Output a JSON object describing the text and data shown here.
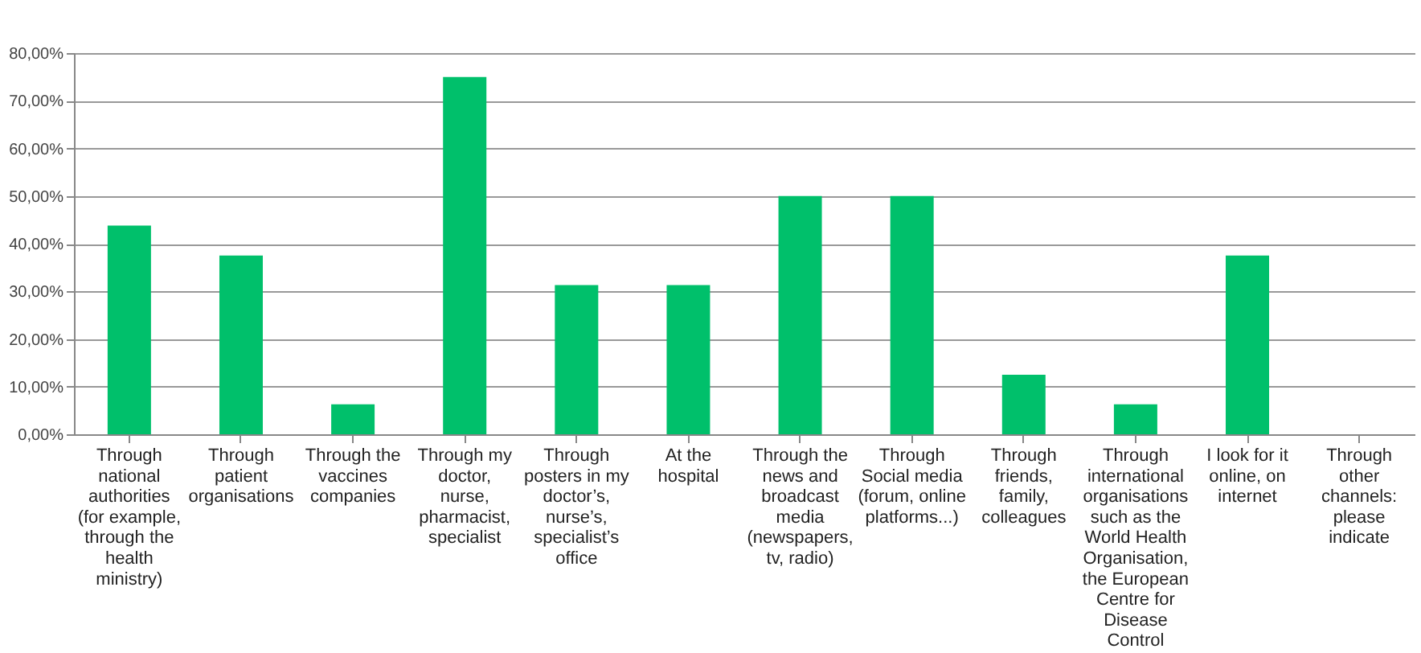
{
  "chart_data": {
    "type": "bar",
    "categories": [
      "Through\nnational\nauthorities\n(for example,\nthrough the\nhealth\nministry)",
      "Through\npatient\norganisations",
      "Through the\nvaccines\ncompanies",
      "Through my\ndoctor,\nnurse,\npharmacist,\nspecialist",
      "Through\nposters in my\ndoctor’s,\nnurse’s,\nspecialist’s\noffice",
      "At the\nhospital",
      "Through the\nnews and\nbroadcast\nmedia\n(newspapers,\ntv, radio)",
      "Through\nSocial media\n(forum, online\nplatforms...)",
      "Through\nfriends,\nfamily,\ncolleagues",
      "Through\ninternational\norganisations\nsuch as the\nWorld Health\nOrganisation,\nthe European\nCentre for\nDisease\nControl",
      "I look for it\nonline, on\ninternet",
      "Through\nother\nchannels:\nplease\nindicate"
    ],
    "values": [
      43.8,
      37.5,
      6.3,
      75,
      31.3,
      31.3,
      50,
      50,
      12.5,
      6.3,
      37.5,
      0
    ],
    "color": "#00c06b",
    "ylim": [
      0,
      80
    ],
    "yticks": [
      {
        "value": 0,
        "label": "0,00%"
      },
      {
        "value": 10,
        "label": "10,00%"
      },
      {
        "value": 20,
        "label": "20,00%"
      },
      {
        "value": 30,
        "label": "30,00%"
      },
      {
        "value": 40,
        "label": "40,00%"
      },
      {
        "value": 50,
        "label": "50,00%"
      },
      {
        "value": 60,
        "label": "60,00%"
      },
      {
        "value": 70,
        "label": "70,00%"
      },
      {
        "value": 80,
        "label": "80,00%"
      }
    ],
    "grid": "y"
  }
}
